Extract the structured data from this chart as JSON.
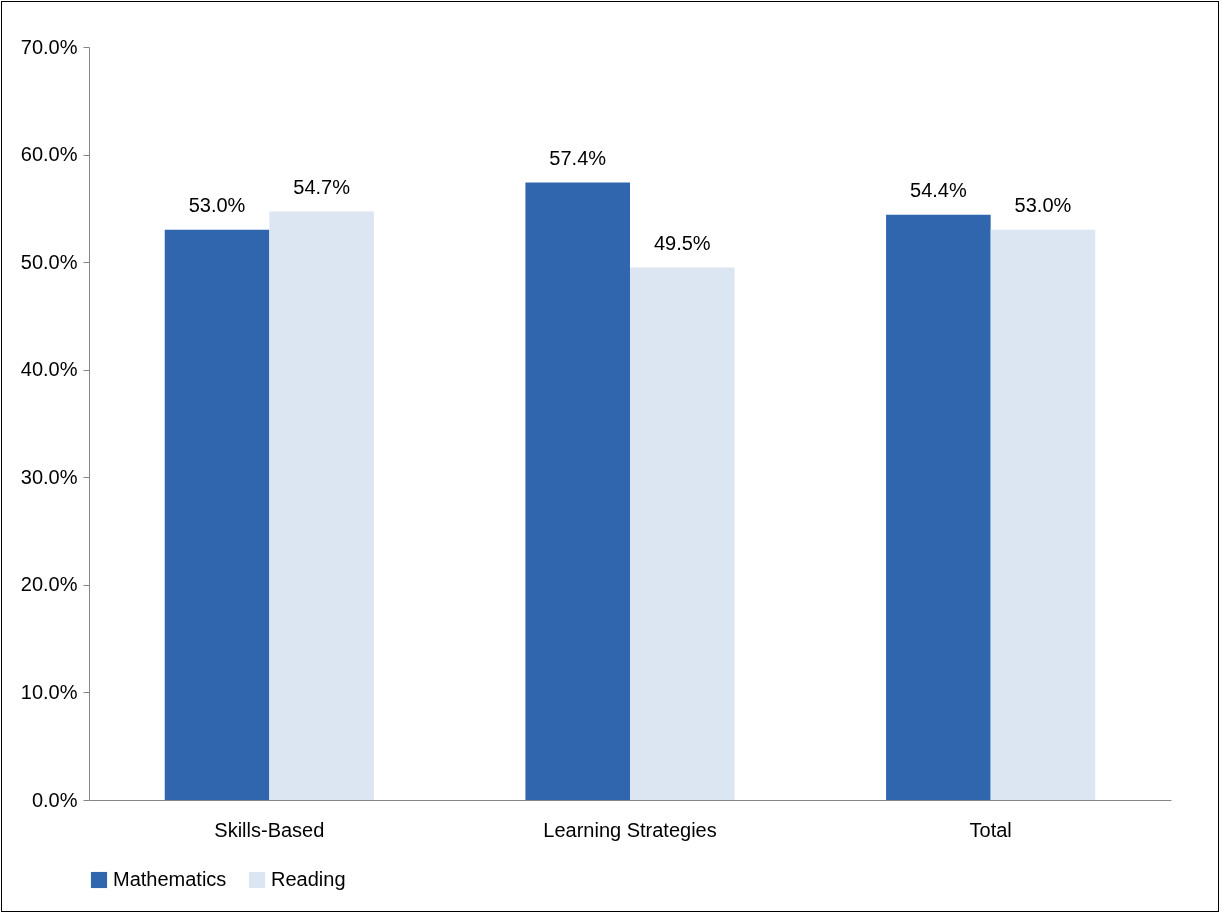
{
  "chart_data": {
    "type": "bar",
    "categories": [
      "Skills-Based",
      "Learning Strategies",
      "Total"
    ],
    "series": [
      {
        "name": "Mathematics",
        "color": "#2f66ae",
        "values": [
          53.0,
          57.4,
          54.4
        ],
        "value_labels": [
          "53.0%",
          "57.4%",
          "54.4%"
        ]
      },
      {
        "name": "Reading",
        "color": "#dce6f2",
        "values": [
          54.7,
          49.5,
          53.0
        ],
        "value_labels": [
          "54.7%",
          "49.5%",
          "53.0%"
        ]
      }
    ],
    "ylim": [
      0,
      70
    ],
    "yticks": [
      {
        "value": 0,
        "label": "0.0%"
      },
      {
        "value": 10,
        "label": "10.0%"
      },
      {
        "value": 20,
        "label": "20.0%"
      },
      {
        "value": 30,
        "label": "30.0%"
      },
      {
        "value": 40,
        "label": "40.0%"
      },
      {
        "value": 50,
        "label": "50.0%"
      },
      {
        "value": 60,
        "label": "60.0%"
      },
      {
        "value": 70,
        "label": "70.0%"
      }
    ],
    "grid": false,
    "legend": "bottom"
  }
}
